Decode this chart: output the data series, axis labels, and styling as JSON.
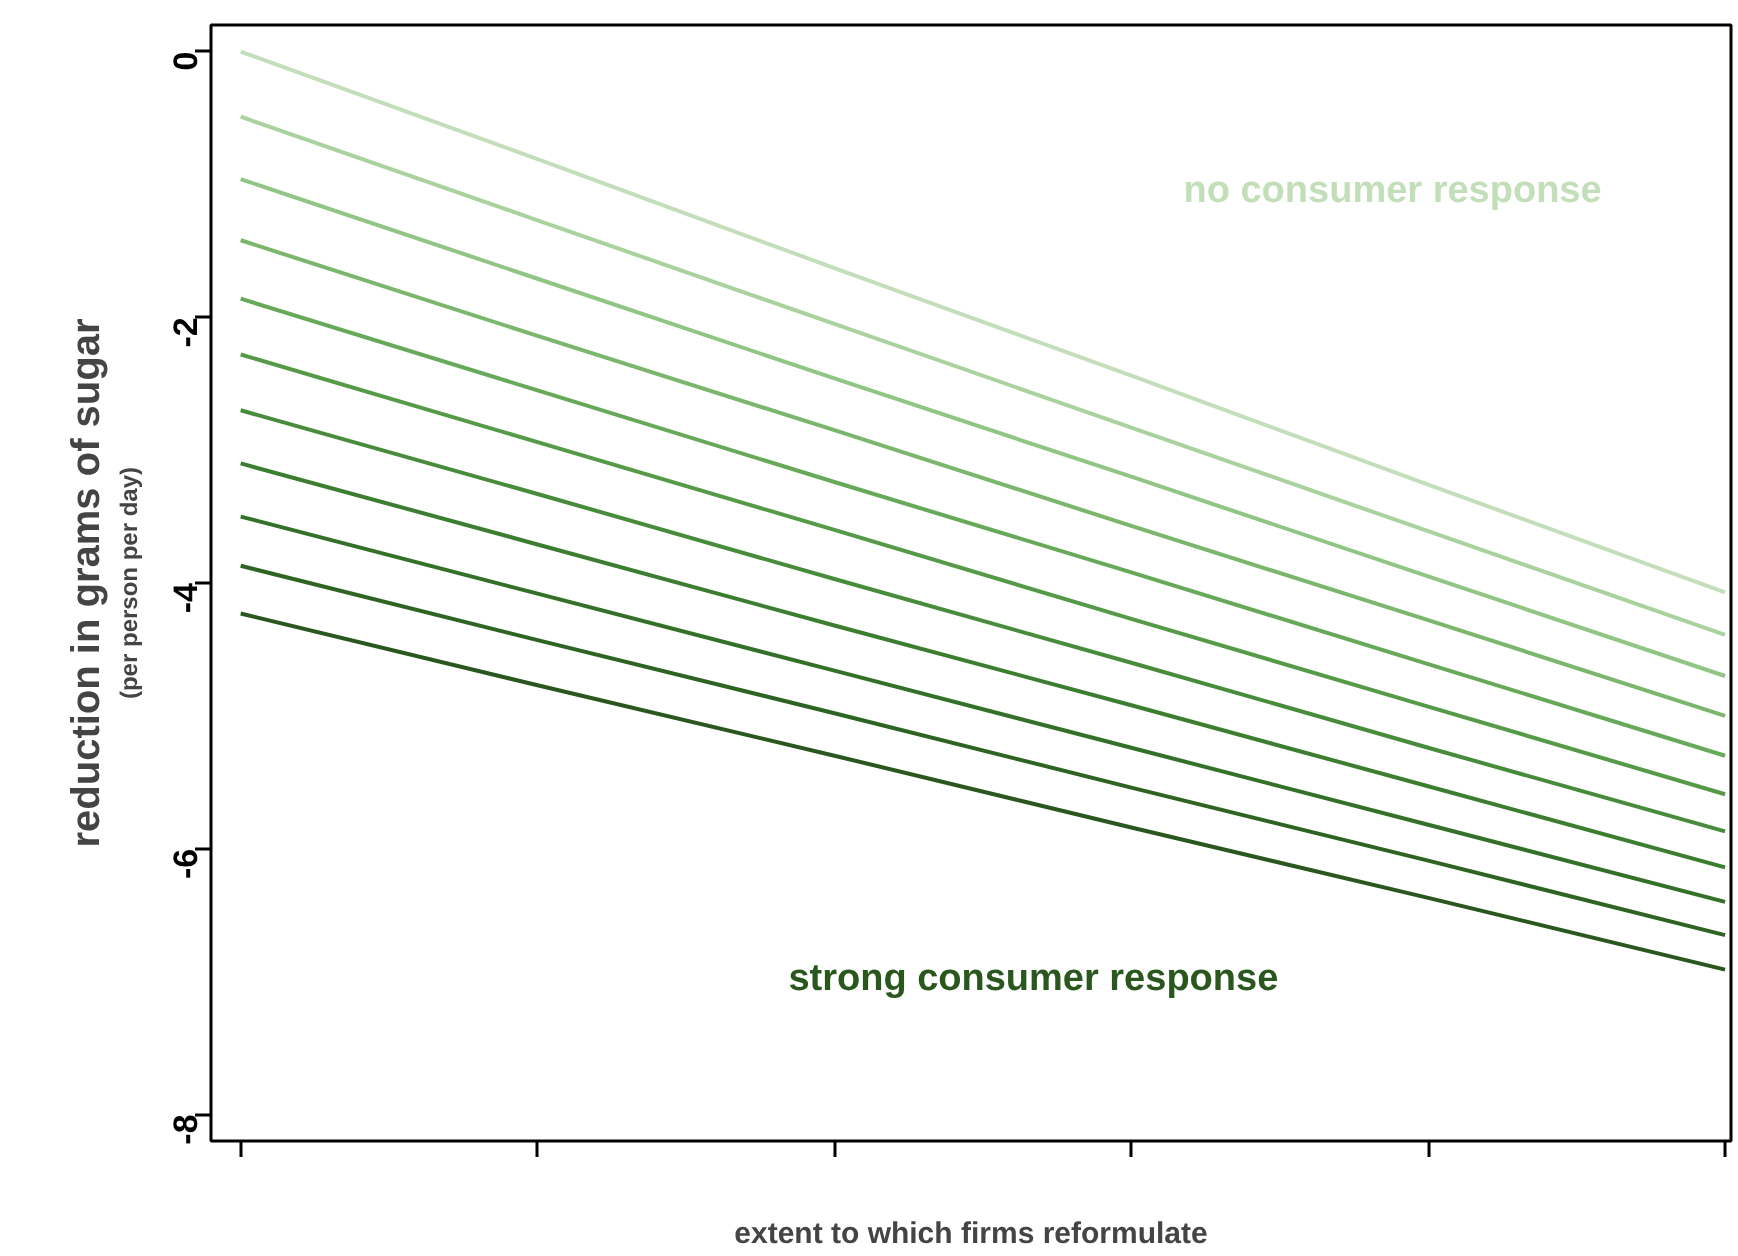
{
  "chart_data": {
    "type": "line",
    "xlabel": "extent to which firms reformulate",
    "ylabel": "reduction in grams of sugar",
    "categories": [
      null,
      null,
      null,
      null,
      null,
      null
    ],
    "ylim": [
      -8.2,
      0.2
    ],
    "yticks": [
      0,
      -2,
      -4,
      -6,
      -8
    ],
    "tick_labels": "y",
    "grid": false,
    "marker": "none",
    "line_style": "solid",
    "series": [
      {
        "color": "#c3dfba",
        "values": [
          0,
          -0.81,
          -1.63,
          -2.44,
          -3.26,
          -4.07
        ]
      },
      {
        "color": "#a9d29e",
        "values": [
          -0.49,
          -1.27,
          -2.05,
          -2.83,
          -3.61,
          -4.39
        ]
      },
      {
        "color": "#91c584",
        "values": [
          -0.96,
          -1.71,
          -2.46,
          -3.2,
          -3.95,
          -4.7
        ]
      },
      {
        "color": "#7ab76c",
        "values": [
          -1.42,
          -2.14,
          -2.85,
          -3.57,
          -4.28,
          -5.0
        ]
      },
      {
        "color": "#66a958",
        "values": [
          -1.86,
          -2.55,
          -3.24,
          -3.92,
          -4.61,
          -5.3
        ]
      },
      {
        "color": "#559b47",
        "values": [
          -2.28,
          -2.94,
          -3.6,
          -4.27,
          -4.93,
          -5.59
        ]
      },
      {
        "color": "#478c3a",
        "values": [
          -2.7,
          -3.33,
          -3.97,
          -4.6,
          -5.24,
          -5.87
        ]
      },
      {
        "color": "#3c7e30",
        "values": [
          -3.1,
          -3.71,
          -4.32,
          -4.92,
          -5.53,
          -6.14
        ]
      },
      {
        "color": "#347128",
        "values": [
          -3.5,
          -4.08,
          -4.66,
          -5.24,
          -5.82,
          -6.4
        ]
      },
      {
        "color": "#2e6422",
        "values": [
          -3.87,
          -4.43,
          -4.98,
          -5.54,
          -6.09,
          -6.65
        ]
      },
      {
        "color": "#29571e",
        "values": [
          -4.23,
          -4.77,
          -5.3,
          -5.84,
          -6.37,
          -6.91
        ]
      }
    ],
    "annotations": [
      "no consumer response",
      "strong consumer response",
      "(per person per day)"
    ]
  }
}
